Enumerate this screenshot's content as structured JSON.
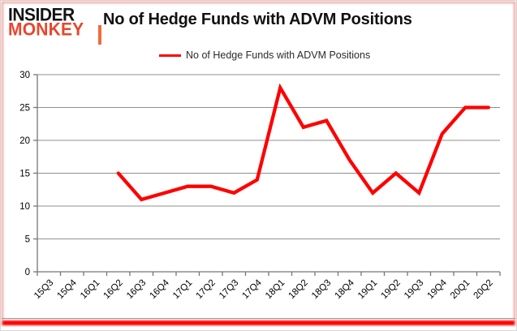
{
  "logo": {
    "line1": "INSIDER",
    "line2": "MONKEY"
  },
  "header": {
    "title": "No of Hedge Funds with ADVM Positions"
  },
  "legend": {
    "label": "No of Hedge Funds with ADVM Positions"
  },
  "colors": {
    "series": "#ff0000",
    "gridline": "#8f8f8f",
    "axis": "#767676",
    "label": "#000000",
    "logo_insider": "#141414",
    "logo_monkey": "#e8462c",
    "accent": "#ef6c3a",
    "frame_glow": "#f07c72",
    "bottom_bar": "#ff0000"
  },
  "chart_data": {
    "type": "line",
    "title": "No of Hedge Funds with ADVM Positions",
    "categories": [
      "15Q3",
      "15Q4",
      "16Q1",
      "16Q2",
      "16Q3",
      "16Q4",
      "17Q1",
      "17Q2",
      "17Q3",
      "17Q4",
      "18Q1",
      "18Q2",
      "18Q3",
      "18Q4",
      "19Q1",
      "19Q2",
      "19Q3",
      "19Q4",
      "20Q1",
      "20Q2"
    ],
    "series": [
      {
        "name": "No of Hedge Funds with ADVM Positions",
        "values": [
          null,
          null,
          null,
          15,
          11,
          12,
          13,
          13,
          12,
          14,
          28,
          22,
          23,
          17,
          12,
          15,
          12,
          21,
          25,
          25
        ]
      }
    ],
    "ylim": [
      0,
      30
    ],
    "yticks": [
      0,
      5,
      10,
      15,
      20,
      25,
      30
    ],
    "grid": true,
    "legend_position": "top-center",
    "xlabel": "",
    "ylabel": ""
  }
}
